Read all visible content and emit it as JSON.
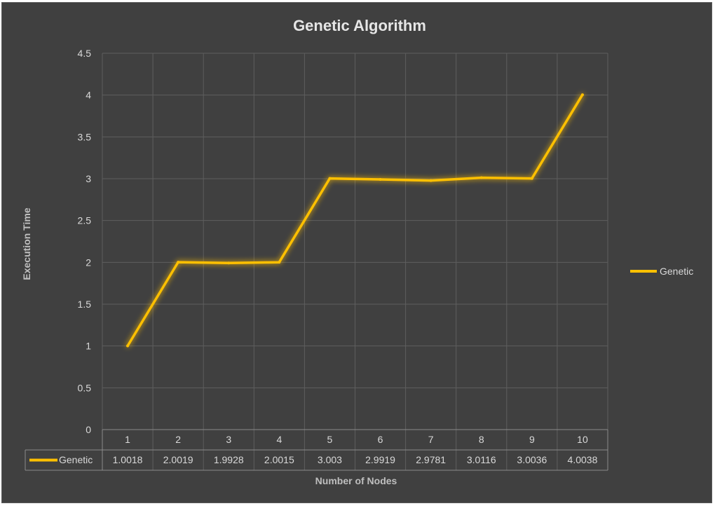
{
  "chart_data": {
    "type": "line",
    "title": "Genetic Algorithm",
    "xlabel": "Number of Nodes",
    "ylabel": "Execution Time",
    "categories": [
      "1",
      "2",
      "3",
      "4",
      "5",
      "6",
      "7",
      "8",
      "9",
      "10"
    ],
    "series": [
      {
        "name": "Genetic",
        "values": [
          1.0018,
          2.0019,
          1.9928,
          2.0015,
          3.003,
          2.9919,
          2.9781,
          3.0116,
          3.0036,
          4.0038
        ],
        "value_labels": [
          "1.0018",
          "2.0019",
          "1.9928",
          "2.0015",
          "3.003",
          "2.9919",
          "2.9781",
          "3.0116",
          "3.0036",
          "4.0038"
        ],
        "color": "#ffc000"
      }
    ],
    "ylim": [
      0,
      4.5
    ],
    "yticks": [
      0,
      0.5,
      1,
      1.5,
      2,
      2.5,
      3,
      3.5,
      4,
      4.5
    ],
    "ytick_labels": [
      "0",
      "0.5",
      "1",
      "1.5",
      "2",
      "2.5",
      "3",
      "3.5",
      "4",
      "4.5"
    ],
    "grid": true,
    "legend": {
      "position": "right",
      "entries": [
        "Genetic"
      ]
    },
    "data_table": true,
    "colors": {
      "background": "#404040",
      "grid": "#5e5e5e",
      "text": "#d9d9d9",
      "title": "#e6e6e6"
    }
  }
}
